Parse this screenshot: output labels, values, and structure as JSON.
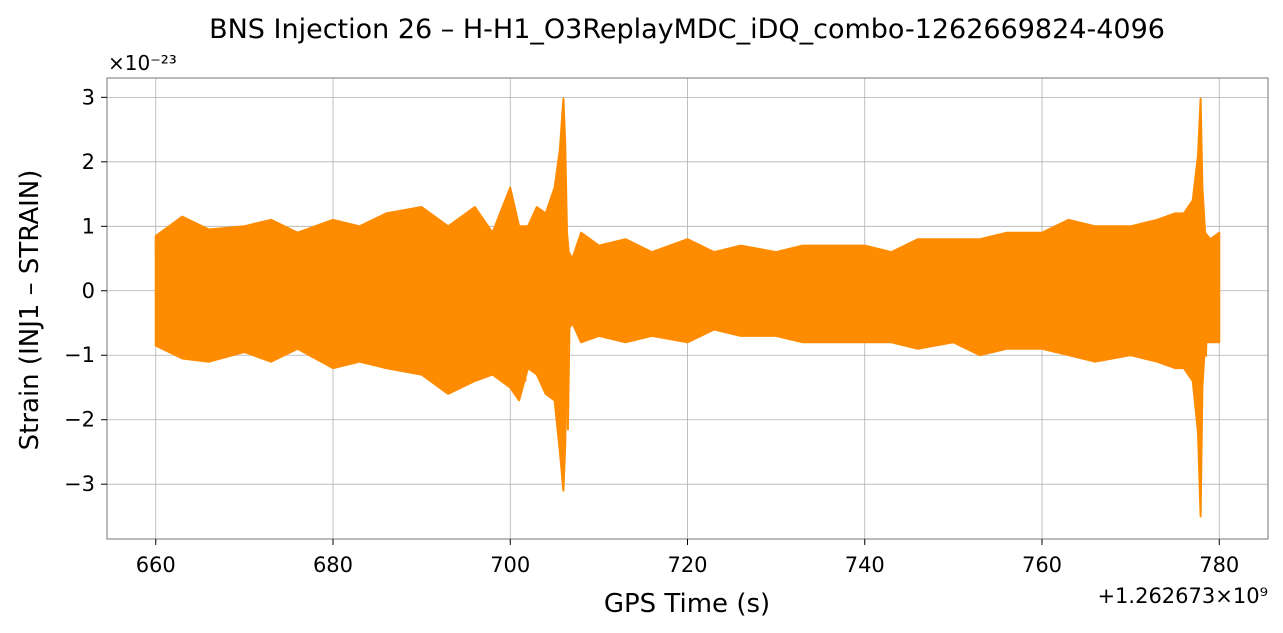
{
  "chart_data": {
    "type": "line",
    "title": "BNS Injection 26 – H-H1_O3ReplayMDC_iDQ_combo-1262669824-4096",
    "xlabel": "GPS Time (s)",
    "ylabel": "Strain (INJ1 – STRAIN)",
    "y_scale_label": "×10⁻²³",
    "x_offset_label": "+1.262673×10⁹",
    "x_offset": 1262673000,
    "xlim": [
      654.5,
      785.5
    ],
    "ylim": [
      -3.85,
      3.3
    ],
    "xticks": [
      660,
      680,
      700,
      720,
      740,
      760,
      780
    ],
    "xtick_labels": [
      "660",
      "680",
      "700",
      "720",
      "740",
      "760",
      "780"
    ],
    "yticks": [
      -3,
      -2,
      -1,
      0,
      1,
      2,
      3
    ],
    "ytick_labels": [
      "−3",
      "−2",
      "−1",
      "0",
      "1",
      "2",
      "3"
    ],
    "grid": true,
    "color": "#ff8c00",
    "series": [
      {
        "x": [
          660,
          663,
          666,
          670,
          673,
          676,
          680,
          683,
          686,
          690,
          693,
          696,
          698,
          700,
          701,
          702,
          703,
          704,
          705,
          705.6,
          706,
          706.2,
          706.4,
          706.6,
          707,
          708,
          710,
          713,
          716,
          720,
          723,
          726,
          730,
          733,
          736,
          740,
          743,
          746,
          750,
          753,
          756,
          760,
          763,
          766,
          770,
          773,
          775,
          776,
          777,
          777.6,
          777.9,
          778.1,
          778.4,
          779,
          780
        ],
        "upper": [
          0.85,
          1.15,
          0.95,
          1.0,
          1.1,
          0.9,
          1.1,
          1.0,
          1.2,
          1.3,
          1.0,
          1.3,
          0.9,
          1.6,
          1.0,
          1.0,
          1.3,
          1.2,
          1.6,
          2.2,
          2.98,
          2.3,
          0.9,
          0.6,
          0.5,
          0.9,
          0.7,
          0.8,
          0.6,
          0.8,
          0.6,
          0.7,
          0.6,
          0.7,
          0.7,
          0.7,
          0.6,
          0.8,
          0.8,
          0.8,
          0.9,
          0.9,
          1.1,
          1.0,
          1.0,
          1.1,
          1.2,
          1.2,
          1.4,
          2.1,
          2.98,
          1.6,
          0.9,
          0.8,
          0.9
        ],
        "lower": [
          -0.85,
          -1.05,
          -1.1,
          -0.95,
          -1.1,
          -0.9,
          -1.2,
          -1.1,
          -1.2,
          -1.3,
          -1.6,
          -1.4,
          -1.3,
          -1.5,
          -1.7,
          -1.2,
          -1.3,
          -1.6,
          -1.7,
          -2.5,
          -3.1,
          -2.4,
          -0.9,
          -0.6,
          -0.5,
          -0.8,
          -0.7,
          -0.8,
          -0.7,
          -0.8,
          -0.6,
          -0.7,
          -0.7,
          -0.8,
          -0.8,
          -0.8,
          -0.8,
          -0.9,
          -0.8,
          -1.0,
          -0.9,
          -0.9,
          -1.0,
          -1.1,
          -1.0,
          -1.1,
          -1.2,
          -1.2,
          -1.4,
          -2.2,
          -3.5,
          -1.5,
          -0.8,
          -0.8,
          -0.8
        ]
      }
    ]
  }
}
